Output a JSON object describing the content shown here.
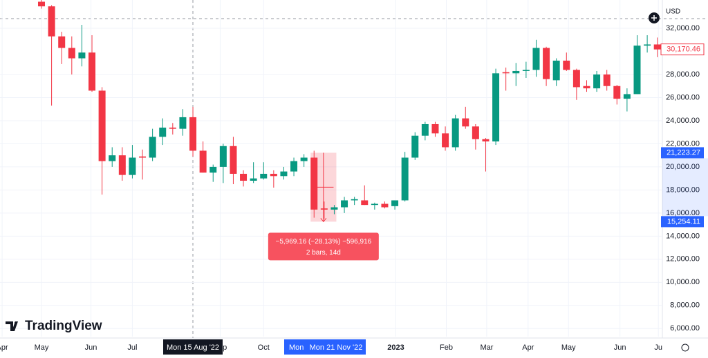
{
  "chart_data": {
    "type": "candlestick",
    "logo": "TradingView",
    "currency": "USD",
    "up_color": "#089981",
    "down_color": "#f23645",
    "xlim": [
      -4.11,
      61.5
    ],
    "ylim": [
      5300,
      34450
    ],
    "xticks": [
      {
        "value": -3.9,
        "label": "Apr"
      },
      {
        "value": 0,
        "label": "May"
      },
      {
        "value": 4.9,
        "label": "Jun"
      },
      {
        "value": 9,
        "label": "Jul"
      },
      {
        "value": 17.7,
        "label": "Sep"
      },
      {
        "value": 22,
        "label": "Oct"
      },
      {
        "value": 35.1,
        "label": "2023"
      },
      {
        "value": 40.1,
        "label": "Feb"
      },
      {
        "value": 44.1,
        "label": "Mar"
      },
      {
        "value": 48.2,
        "label": "Apr"
      },
      {
        "value": 52.2,
        "label": "May"
      },
      {
        "value": 57.3,
        "label": "Jun"
      },
      {
        "value": 61.1,
        "label": "Ju"
      }
    ],
    "yticks": [
      {
        "value": 32000,
        "label": "32,000.00"
      },
      {
        "value": 28000,
        "label": "28,000.00"
      },
      {
        "value": 26000,
        "label": "26,000.00"
      },
      {
        "value": 24000,
        "label": "24,000.00"
      },
      {
        "value": 22000,
        "label": "22,000.00"
      },
      {
        "value": 20000,
        "label": "20,000.00"
      },
      {
        "value": 18000,
        "label": "18,000.00"
      },
      {
        "value": 16000,
        "label": "16,000.00"
      },
      {
        "value": 14000,
        "label": "14,000.00"
      },
      {
        "value": 12000,
        "label": "12,000.00"
      },
      {
        "value": 10000,
        "label": "10,000.00"
      },
      {
        "value": 8000,
        "label": "8,000.00"
      },
      {
        "value": 6000,
        "label": "6,000.00"
      }
    ],
    "price_labels": [
      {
        "value": 30170.46,
        "label": "30,170.46",
        "style": "outline"
      },
      {
        "value": 21223.27,
        "label": "21,223.27",
        "style": "blue"
      },
      {
        "value": 15254.11,
        "label": "15,254.11",
        "style": "blue"
      }
    ],
    "measure": {
      "label": "−5,969.16 (−28.13%) −596,916",
      "sub": "2 bars, 14d"
    },
    "crosshair_labels": [
      "Mon 15 Aug '22",
      "Mon",
      "Mon 21 Nov '22"
    ],
    "candles": [
      {
        "open": 34300,
        "high": 34450,
        "low": 33700,
        "close": 33900
      },
      {
        "open": 33900,
        "high": 34000,
        "low": 25300,
        "close": 31300
      },
      {
        "open": 31300,
        "high": 31700,
        "low": 28900,
        "close": 30300
      },
      {
        "open": 30300,
        "high": 31300,
        "low": 28000,
        "close": 29400
      },
      {
        "open": 29400,
        "high": 32300,
        "low": 28700,
        "close": 29900
      },
      {
        "open": 29900,
        "high": 31400,
        "low": 26500,
        "close": 26600
      },
      {
        "open": 26600,
        "high": 26900,
        "low": 17600,
        "close": 20500
      },
      {
        "open": 20500,
        "high": 21700,
        "low": 20000,
        "close": 21000
      },
      {
        "open": 21000,
        "high": 21700,
        "low": 18800,
        "close": 19300
      },
      {
        "open": 19300,
        "high": 21900,
        "low": 19000,
        "close": 20800
      },
      {
        "open": 20900,
        "high": 21500,
        "low": 18900,
        "close": 20800
      },
      {
        "open": 20800,
        "high": 23300,
        "low": 20500,
        "close": 22600
      },
      {
        "open": 22600,
        "high": 24200,
        "low": 21900,
        "close": 23400
      },
      {
        "open": 23400,
        "high": 23800,
        "low": 22800,
        "close": 23300
      },
      {
        "open": 23300,
        "high": 25000,
        "low": 22700,
        "close": 24300
      },
      {
        "open": 24300,
        "high": 25200,
        "low": 20900,
        "close": 21400
      },
      {
        "open": 21400,
        "high": 22200,
        "low": 19500,
        "close": 19500
      },
      {
        "open": 19500,
        "high": 20200,
        "low": 18700,
        "close": 20000
      },
      {
        "open": 20000,
        "high": 22000,
        "low": 18600,
        "close": 21800
      },
      {
        "open": 21800,
        "high": 22600,
        "low": 18500,
        "close": 19400
      },
      {
        "open": 19400,
        "high": 19700,
        "low": 18300,
        "close": 18800
      },
      {
        "open": 18800,
        "high": 20400,
        "low": 18600,
        "close": 19000
      },
      {
        "open": 19000,
        "high": 20400,
        "low": 18900,
        "close": 19400
      },
      {
        "open": 19400,
        "high": 19700,
        "low": 18200,
        "close": 19200
      },
      {
        "open": 19200,
        "high": 20000,
        "low": 18900,
        "close": 19600
      },
      {
        "open": 19600,
        "high": 20800,
        "low": 19200,
        "close": 20500
      },
      {
        "open": 20500,
        "high": 21100,
        "low": 20000,
        "close": 20800
      },
      {
        "open": 20800,
        "high": 21400,
        "low": 15600,
        "close": 16300
      },
      {
        "open": 16400,
        "high": 17000,
        "low": 15500,
        "close": 16300
      },
      {
        "open": 16300,
        "high": 16700,
        "low": 15900,
        "close": 16500
      },
      {
        "open": 16500,
        "high": 17400,
        "low": 16000,
        "close": 17100
      },
      {
        "open": 17100,
        "high": 17400,
        "low": 16700,
        "close": 17200
      },
      {
        "open": 17100,
        "high": 18400,
        "low": 16700,
        "close": 16700
      },
      {
        "open": 16700,
        "high": 16900,
        "low": 16300,
        "close": 16800
      },
      {
        "open": 16800,
        "high": 17000,
        "low": 16400,
        "close": 16500
      },
      {
        "open": 16600,
        "high": 17100,
        "low": 16300,
        "close": 17100
      },
      {
        "open": 17100,
        "high": 21300,
        "low": 17000,
        "close": 20800
      },
      {
        "open": 20800,
        "high": 23000,
        "low": 20600,
        "close": 22700
      },
      {
        "open": 22700,
        "high": 23900,
        "low": 22300,
        "close": 23700
      },
      {
        "open": 23700,
        "high": 23900,
        "low": 22600,
        "close": 22900
      },
      {
        "open": 22900,
        "high": 23500,
        "low": 21400,
        "close": 21700
      },
      {
        "open": 21700,
        "high": 24500,
        "low": 21400,
        "close": 24200
      },
      {
        "open": 24200,
        "high": 25200,
        "low": 23300,
        "close": 23500
      },
      {
        "open": 23500,
        "high": 23700,
        "low": 21500,
        "close": 22400
      },
      {
        "open": 22400,
        "high": 22500,
        "low": 19600,
        "close": 22200
      },
      {
        "open": 22200,
        "high": 28500,
        "low": 21900,
        "close": 28100
      },
      {
        "open": 28200,
        "high": 28600,
        "low": 26600,
        "close": 28100
      },
      {
        "open": 28100,
        "high": 29000,
        "low": 27000,
        "close": 28300
      },
      {
        "open": 28300,
        "high": 29100,
        "low": 27700,
        "close": 28400
      },
      {
        "open": 28400,
        "high": 31000,
        "low": 27800,
        "close": 30300
      },
      {
        "open": 30300,
        "high": 30400,
        "low": 27000,
        "close": 27600
      },
      {
        "open": 27500,
        "high": 29400,
        "low": 27000,
        "close": 29200
      },
      {
        "open": 29200,
        "high": 29900,
        "low": 28300,
        "close": 28400
      },
      {
        "open": 28400,
        "high": 28500,
        "low": 25800,
        "close": 26900
      },
      {
        "open": 27000,
        "high": 27500,
        "low": 26500,
        "close": 26800
      },
      {
        "open": 26800,
        "high": 28300,
        "low": 26500,
        "close": 28000
      },
      {
        "open": 28000,
        "high": 28400,
        "low": 26600,
        "close": 27000
      },
      {
        "open": 27000,
        "high": 27100,
        "low": 25400,
        "close": 25900
      },
      {
        "open": 25900,
        "high": 26800,
        "low": 24800,
        "close": 26300
      },
      {
        "open": 26300,
        "high": 31400,
        "low": 26300,
        "close": 30500
      },
      {
        "open": 30500,
        "high": 31400,
        "low": 29900,
        "close": 30600
      },
      {
        "open": 30600,
        "high": 31200,
        "low": 29500,
        "close": 30170.46
      }
    ]
  }
}
